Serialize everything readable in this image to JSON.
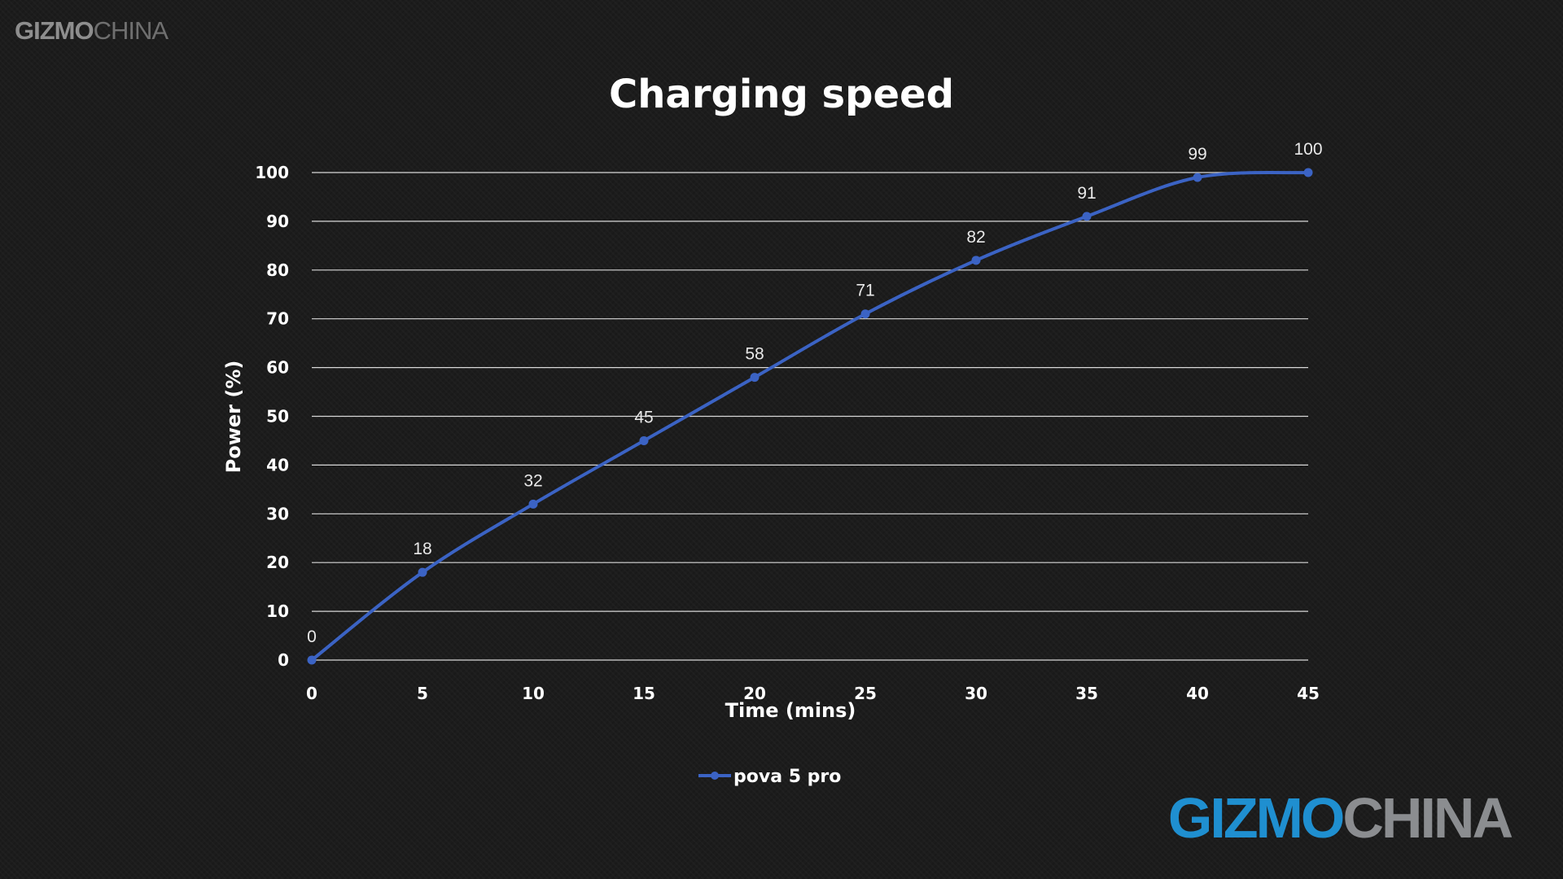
{
  "watermark": {
    "brand_bold": "GIZMO",
    "brand_light": "CHINA"
  },
  "colors": {
    "series": "#3b63c4",
    "background": "#1c1c1c",
    "grid": "#d8d8d8",
    "logo_blue": "#1f8fd0",
    "logo_gray": "#8b8d90"
  },
  "chart_data": {
    "type": "line",
    "title": "Charging speed",
    "xlabel": "Time (mins)",
    "ylabel": "Power (%)",
    "x": [
      0,
      5,
      10,
      15,
      20,
      25,
      30,
      35,
      40,
      45
    ],
    "series": [
      {
        "name": "pova 5 pro",
        "values": [
          0,
          18,
          32,
          45,
          58,
          71,
          82,
          91,
          99,
          100
        ]
      }
    ],
    "xlim": [
      0,
      45
    ],
    "ylim": [
      0,
      100
    ],
    "x_ticks": [
      0,
      5,
      10,
      15,
      20,
      25,
      30,
      35,
      40,
      45
    ],
    "y_ticks": [
      0,
      10,
      20,
      30,
      40,
      50,
      60,
      70,
      80,
      90,
      100
    ],
    "grid": "horizontal",
    "legend": "bottom-center",
    "smooth": true
  }
}
